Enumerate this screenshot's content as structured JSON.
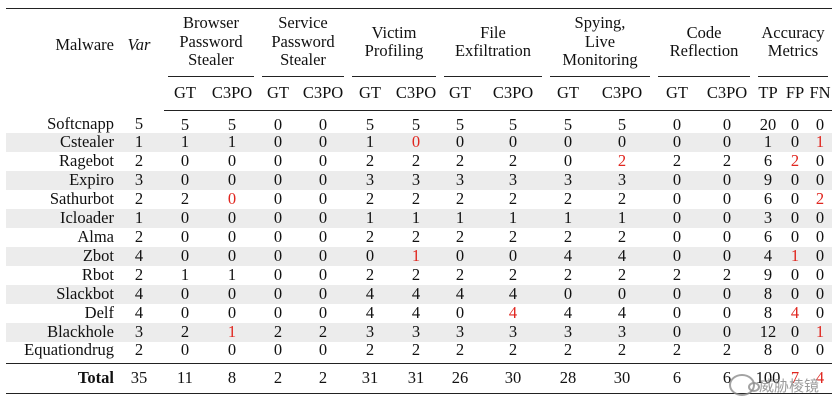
{
  "headers": {
    "malware": "Malware",
    "var": "Var",
    "groups": [
      {
        "label": "Browser\nPassword\nStealer",
        "subs": [
          "GT",
          "C3PO"
        ]
      },
      {
        "label": "Service\nPassword\nStealer",
        "subs": [
          "GT",
          "C3PO"
        ]
      },
      {
        "label": "Victim\nProfiling",
        "subs": [
          "GT",
          "C3PO"
        ]
      },
      {
        "label": "File\nExfiltration",
        "subs": [
          "GT",
          "C3PO"
        ]
      },
      {
        "label": "Spying,\nLive\nMonitoring",
        "subs": [
          "GT",
          "C3PO"
        ]
      },
      {
        "label": "Code\nReflection",
        "subs": [
          "GT",
          "C3PO"
        ]
      },
      {
        "label": "Accuracy\nMetrics",
        "subs": [
          "TP",
          "FP",
          "FN"
        ]
      }
    ]
  },
  "rows": [
    {
      "name": "Softcnapp",
      "cells": [
        "5",
        "5",
        "5",
        "0",
        "0",
        "5",
        "5",
        "5",
        "5",
        "5",
        "5",
        "0",
        "0",
        "20",
        "0",
        "0"
      ],
      "red": []
    },
    {
      "name": "Cstealer",
      "cells": [
        "1",
        "1",
        "1",
        "0",
        "0",
        "1",
        "0",
        "0",
        "0",
        "0",
        "0",
        "0",
        "0",
        "1",
        "0",
        "1"
      ],
      "red": [
        6,
        15
      ]
    },
    {
      "name": "Ragebot",
      "cells": [
        "2",
        "0",
        "0",
        "0",
        "0",
        "2",
        "2",
        "2",
        "2",
        "0",
        "2",
        "2",
        "2",
        "6",
        "2",
        "0"
      ],
      "red": [
        10,
        14
      ]
    },
    {
      "name": "Expiro",
      "cells": [
        "3",
        "0",
        "0",
        "0",
        "0",
        "3",
        "3",
        "3",
        "3",
        "3",
        "3",
        "0",
        "0",
        "9",
        "0",
        "0"
      ],
      "red": []
    },
    {
      "name": "Sathurbot",
      "cells": [
        "2",
        "2",
        "0",
        "0",
        "0",
        "2",
        "2",
        "2",
        "2",
        "2",
        "2",
        "0",
        "0",
        "6",
        "0",
        "2"
      ],
      "red": [
        2,
        15
      ]
    },
    {
      "name": "Icloader",
      "cells": [
        "1",
        "0",
        "0",
        "0",
        "0",
        "1",
        "1",
        "1",
        "1",
        "1",
        "1",
        "0",
        "0",
        "3",
        "0",
        "0"
      ],
      "red": []
    },
    {
      "name": "Alma",
      "cells": [
        "2",
        "0",
        "0",
        "0",
        "0",
        "2",
        "2",
        "2",
        "2",
        "2",
        "2",
        "0",
        "0",
        "6",
        "0",
        "0"
      ],
      "red": []
    },
    {
      "name": "Zbot",
      "cells": [
        "4",
        "0",
        "0",
        "0",
        "0",
        "0",
        "1",
        "0",
        "0",
        "4",
        "4",
        "0",
        "0",
        "4",
        "1",
        "0"
      ],
      "red": [
        6,
        14
      ]
    },
    {
      "name": "Rbot",
      "cells": [
        "2",
        "1",
        "1",
        "0",
        "0",
        "2",
        "2",
        "2",
        "2",
        "2",
        "2",
        "2",
        "2",
        "9",
        "0",
        "0"
      ],
      "red": []
    },
    {
      "name": "Slackbot",
      "cells": [
        "4",
        "0",
        "0",
        "0",
        "0",
        "4",
        "4",
        "4",
        "4",
        "0",
        "0",
        "0",
        "0",
        "8",
        "0",
        "0"
      ],
      "red": []
    },
    {
      "name": "Delf",
      "cells": [
        "4",
        "0",
        "0",
        "0",
        "0",
        "4",
        "4",
        "0",
        "4",
        "4",
        "4",
        "0",
        "0",
        "8",
        "4",
        "0"
      ],
      "red": [
        8,
        14
      ]
    },
    {
      "name": "Blackhole",
      "cells": [
        "3",
        "2",
        "1",
        "2",
        "2",
        "3",
        "3",
        "3",
        "3",
        "3",
        "3",
        "0",
        "0",
        "12",
        "0",
        "1"
      ],
      "red": [
        2,
        15
      ]
    },
    {
      "name": "Equationdrug",
      "cells": [
        "2",
        "0",
        "0",
        "0",
        "0",
        "2",
        "2",
        "2",
        "2",
        "2",
        "2",
        "2",
        "2",
        "8",
        "0",
        "0"
      ],
      "red": []
    }
  ],
  "total": {
    "label": "Total",
    "cells": [
      "35",
      "11",
      "8",
      "2",
      "2",
      "31",
      "31",
      "26",
      "30",
      "28",
      "30",
      "6",
      "6",
      "100",
      "7",
      "4"
    ],
    "red": [
      14,
      15
    ]
  },
  "watermark": "威胁棱镜"
}
